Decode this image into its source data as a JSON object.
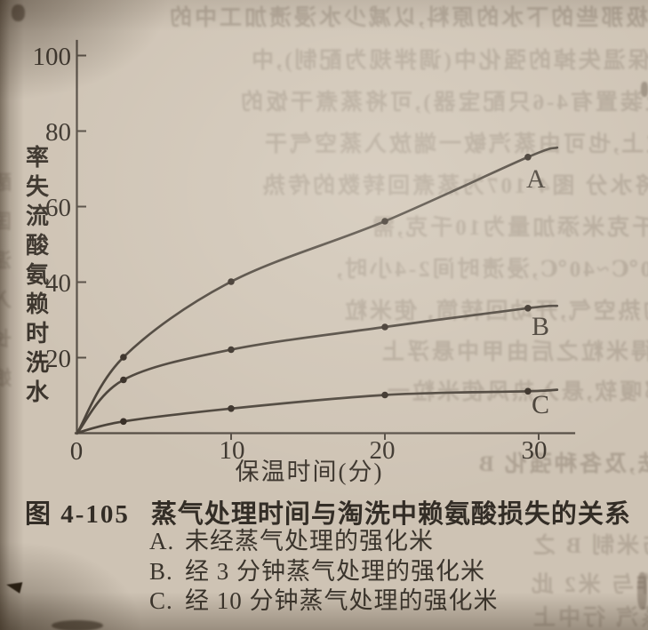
{
  "colors": {
    "paper": "#cec3b4",
    "ink": "#3c362f",
    "curve": "#4c443b"
  },
  "chart": {
    "y_axis_label": "水洗时赖氨酸流失率",
    "x_axis_label": "保温时间(分)",
    "y_tick_labels": [
      "100",
      "80",
      "60",
      "40",
      "20"
    ],
    "origin_label": "0",
    "x_tick_labels": [
      "10",
      "20",
      "30"
    ]
  },
  "chart_data": {
    "type": "line",
    "title": "蒸气处理时间与淘洗中赖氨酸损失的关系",
    "xlabel": "保温时间(分)",
    "ylabel": "水洗时赖氨酸流失率",
    "xlim": [
      0,
      32
    ],
    "ylim": [
      0,
      105
    ],
    "x_ticks": [
      0,
      10,
      20,
      30
    ],
    "y_ticks": [
      20,
      40,
      60,
      80,
      100
    ],
    "grid": false,
    "legend_position": "below-figure",
    "series": [
      {
        "label": "A",
        "name": "未经蒸气处理的强化米",
        "x": [
          0,
          3,
          10,
          20,
          29.3,
          31.2
        ],
        "y": [
          0,
          20,
          40,
          56,
          73,
          75.5
        ]
      },
      {
        "label": "B",
        "name": "经3分钟蒸气处理的强化米",
        "x": [
          0,
          3,
          10,
          20,
          29.3,
          31.2
        ],
        "y": [
          0,
          14,
          22,
          28,
          33,
          33.6
        ]
      },
      {
        "label": "C",
        "name": "经10分钟蒸气处理的强化米",
        "x": [
          0,
          3,
          10,
          20,
          29.3,
          31.2
        ],
        "y": [
          0,
          3,
          6.4,
          10,
          11,
          11.4
        ]
      }
    ]
  },
  "caption": {
    "figure_number": "图 4-105",
    "title": "蒸气处理时间与淘洗中赖氨酸损失的关系",
    "legend": [
      {
        "key": "A.",
        "text": "未经蒸气处理的强化米"
      },
      {
        "key": "B.",
        "text": "经 3 分钟蒸气处理的强化米"
      },
      {
        "key": "C.",
        "text": "经 10 分钟蒸气处理的强化米"
      }
    ]
  },
  "ghost_lines": [
    "极那些的下水的原料,以减少水浸渍加工中的",
    "蒸气保温失掉的强化中(调拌规为配制),中",
    "上装置有4-6只配宝器),可将蒸煮干饭的",
    "米粒上,也可由蒸汽敏一端放入蒸空气干",
    "内将水分 图4-107为蒸煮回转数的传热",
    "因,每百千克米添加量为10千克,需",
    "温度为50℃~40℃,浸渍时间2-4小时,",
    "入40℃的热空气,开动回转筒, 使米粒",
    "弹,可得米粒之后由甲中悬浮上",
    "值之全部嗄软,悬入热风使米粒一",
    "(2)二次浸渍法,及各种强化 B",
    "料中与米制 B 之",
    "强是操作与 米2 此",
    "(3)蒸汽 行中上",
    "醒\n国\n温\n入\n长\n娘"
  ]
}
